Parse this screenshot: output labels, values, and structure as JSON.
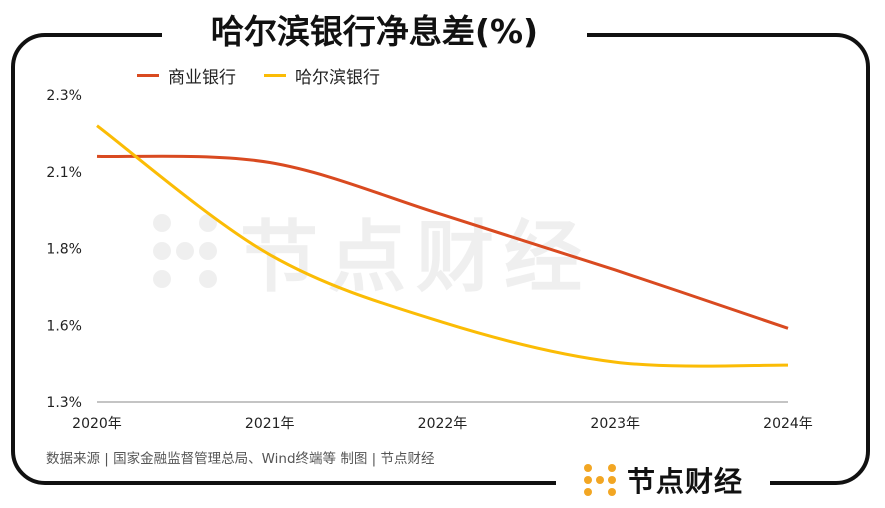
{
  "page": {
    "title": "哈尔滨银行净息差(%)",
    "source": "数据来源 | 国家金融监督管理总局、Wind终端等  制图 | 节点财经",
    "brand": "节点财经",
    "watermark": "节点财经"
  },
  "colors": {
    "series_1": "#D94A20",
    "series_2": "#FBBC05",
    "brand_accent": "#F2A623"
  },
  "chart_data": {
    "type": "line",
    "x": [
      "2020年",
      "2021年",
      "2022年",
      "2023年",
      "2024年"
    ],
    "y_ticks": [
      "2.3%",
      "2.1%",
      "1.8%",
      "1.6%",
      "1.3%"
    ],
    "ylim": [
      1.3,
      2.3
    ],
    "grid": false,
    "legend_position": "top-left",
    "series": [
      {
        "name": "商业银行",
        "values": [
          2.1,
          2.08,
          1.91,
          1.73,
          1.54
        ]
      },
      {
        "name": "哈尔滨银行",
        "values": [
          2.2,
          1.78,
          1.56,
          1.43,
          1.42
        ]
      }
    ]
  }
}
